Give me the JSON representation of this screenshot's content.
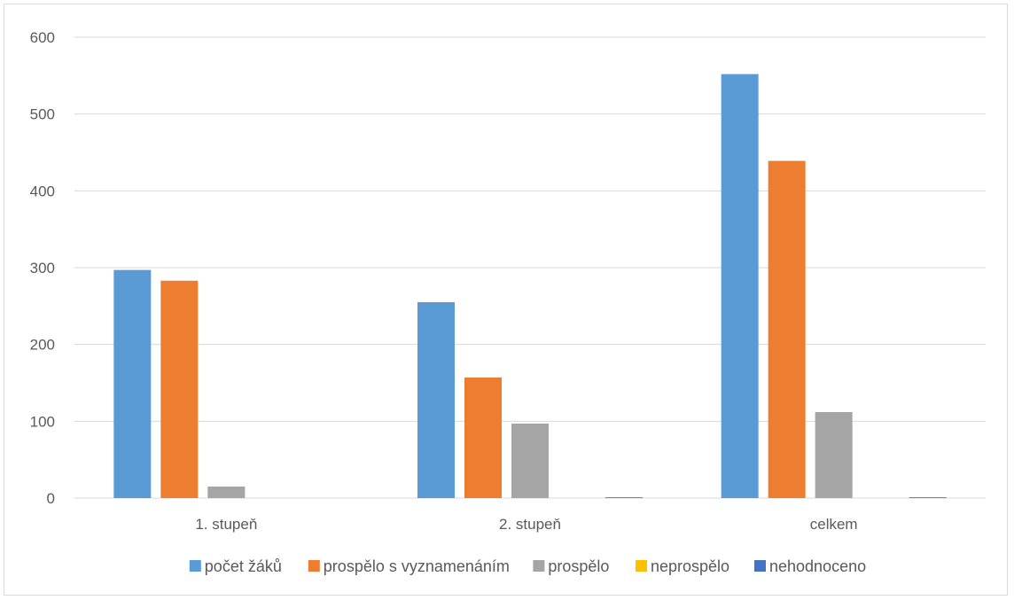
{
  "chart_data": {
    "type": "bar",
    "categories": [
      "1. stupeň",
      "2. stupeň",
      "celkem"
    ],
    "series": [
      {
        "name": "počet žáků",
        "color": "#5b9bd5",
        "values": [
          297,
          255,
          552
        ]
      },
      {
        "name": "prospělo s vyznamenáním",
        "color": "#ed7d31",
        "values": [
          283,
          157,
          439
        ]
      },
      {
        "name": "prospělo",
        "color": "#a5a5a5",
        "values": [
          15,
          97,
          112
        ]
      },
      {
        "name": "neprospělo",
        "color": "#ffc000",
        "values": [
          0,
          0,
          0
        ]
      },
      {
        "name": "nehodnoceno",
        "color": "#4472c4",
        "values": [
          0,
          1,
          1
        ]
      }
    ],
    "ylim": [
      0,
      600
    ],
    "yticks": [
      0,
      100,
      200,
      300,
      400,
      500,
      600
    ],
    "grid": true,
    "legend": "bottom",
    "title": "",
    "xlabel": "",
    "ylabel": ""
  }
}
